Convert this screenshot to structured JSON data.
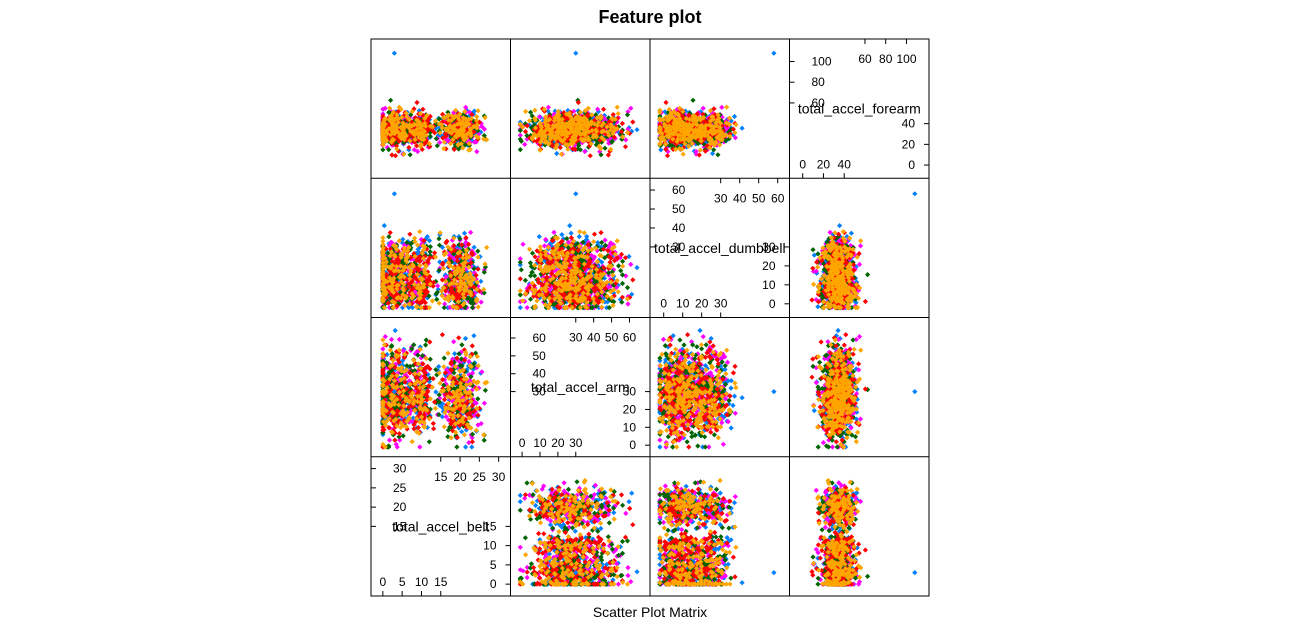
{
  "chart_data": {
    "type": "scatter",
    "title": "Feature plot",
    "xlabel": "Scatter Plot Matrix",
    "variables": [
      "total_accel_belt",
      "total_accel_arm",
      "total_accel_dumbbell",
      "total_accel_forearm"
    ],
    "ranges": {
      "total_accel_belt": [
        -1,
        31
      ],
      "total_accel_arm": [
        -2,
        67
      ],
      "total_accel_dumbbell": [
        -3,
        62
      ],
      "total_accel_forearm": [
        -5,
        114
      ]
    },
    "ticks": {
      "total_accel_belt": {
        "low": [
          "0",
          "5",
          "10",
          "15"
        ],
        "high": [
          "15",
          "20",
          "25",
          "30"
        ]
      },
      "total_accel_arm": {
        "low": [
          "0",
          "10",
          "20",
          "30"
        ],
        "high": [
          "30",
          "40",
          "50",
          "60"
        ]
      },
      "total_accel_dumbbell": {
        "low": [
          "0",
          "10",
          "20",
          "30"
        ],
        "high": [
          "30",
          "40",
          "50",
          "60"
        ]
      },
      "total_accel_forearm": {
        "low": [
          "0",
          "20",
          "40"
        ],
        "high": [
          "60",
          "80",
          "100"
        ]
      }
    },
    "classes": [
      {
        "color": "#0080ff"
      },
      {
        "color": "#ff00ff"
      },
      {
        "color": "#006400"
      },
      {
        "color": "#ff0000"
      },
      {
        "color": "#ffa500"
      }
    ],
    "clusters": {
      "total_accel_belt": [
        {
          "center": 3,
          "spread": 3,
          "weight": 0.45
        },
        {
          "center": 10,
          "spread": 1.5,
          "weight": 0.15
        },
        {
          "center": 20,
          "spread": 2.5,
          "weight": 0.4
        }
      ],
      "total_accel_arm": [
        {
          "center": 25,
          "spread": 11,
          "weight": 0.8
        },
        {
          "center": 42,
          "spread": 8,
          "weight": 0.2
        }
      ],
      "total_accel_dumbbell": [
        {
          "center": 8,
          "spread": 6,
          "weight": 0.65
        },
        {
          "center": 24,
          "spread": 6,
          "weight": 0.35
        }
      ],
      "total_accel_forearm": [
        {
          "center": 34,
          "spread": 8,
          "weight": 1
        }
      ]
    },
    "outlier": {
      "class_color": "#0080ff",
      "values": {
        "total_accel_belt": 3,
        "total_accel_arm": 30,
        "total_accel_dumbbell": 58,
        "total_accel_forearm": 108
      }
    },
    "grid": false,
    "legend": "none"
  }
}
